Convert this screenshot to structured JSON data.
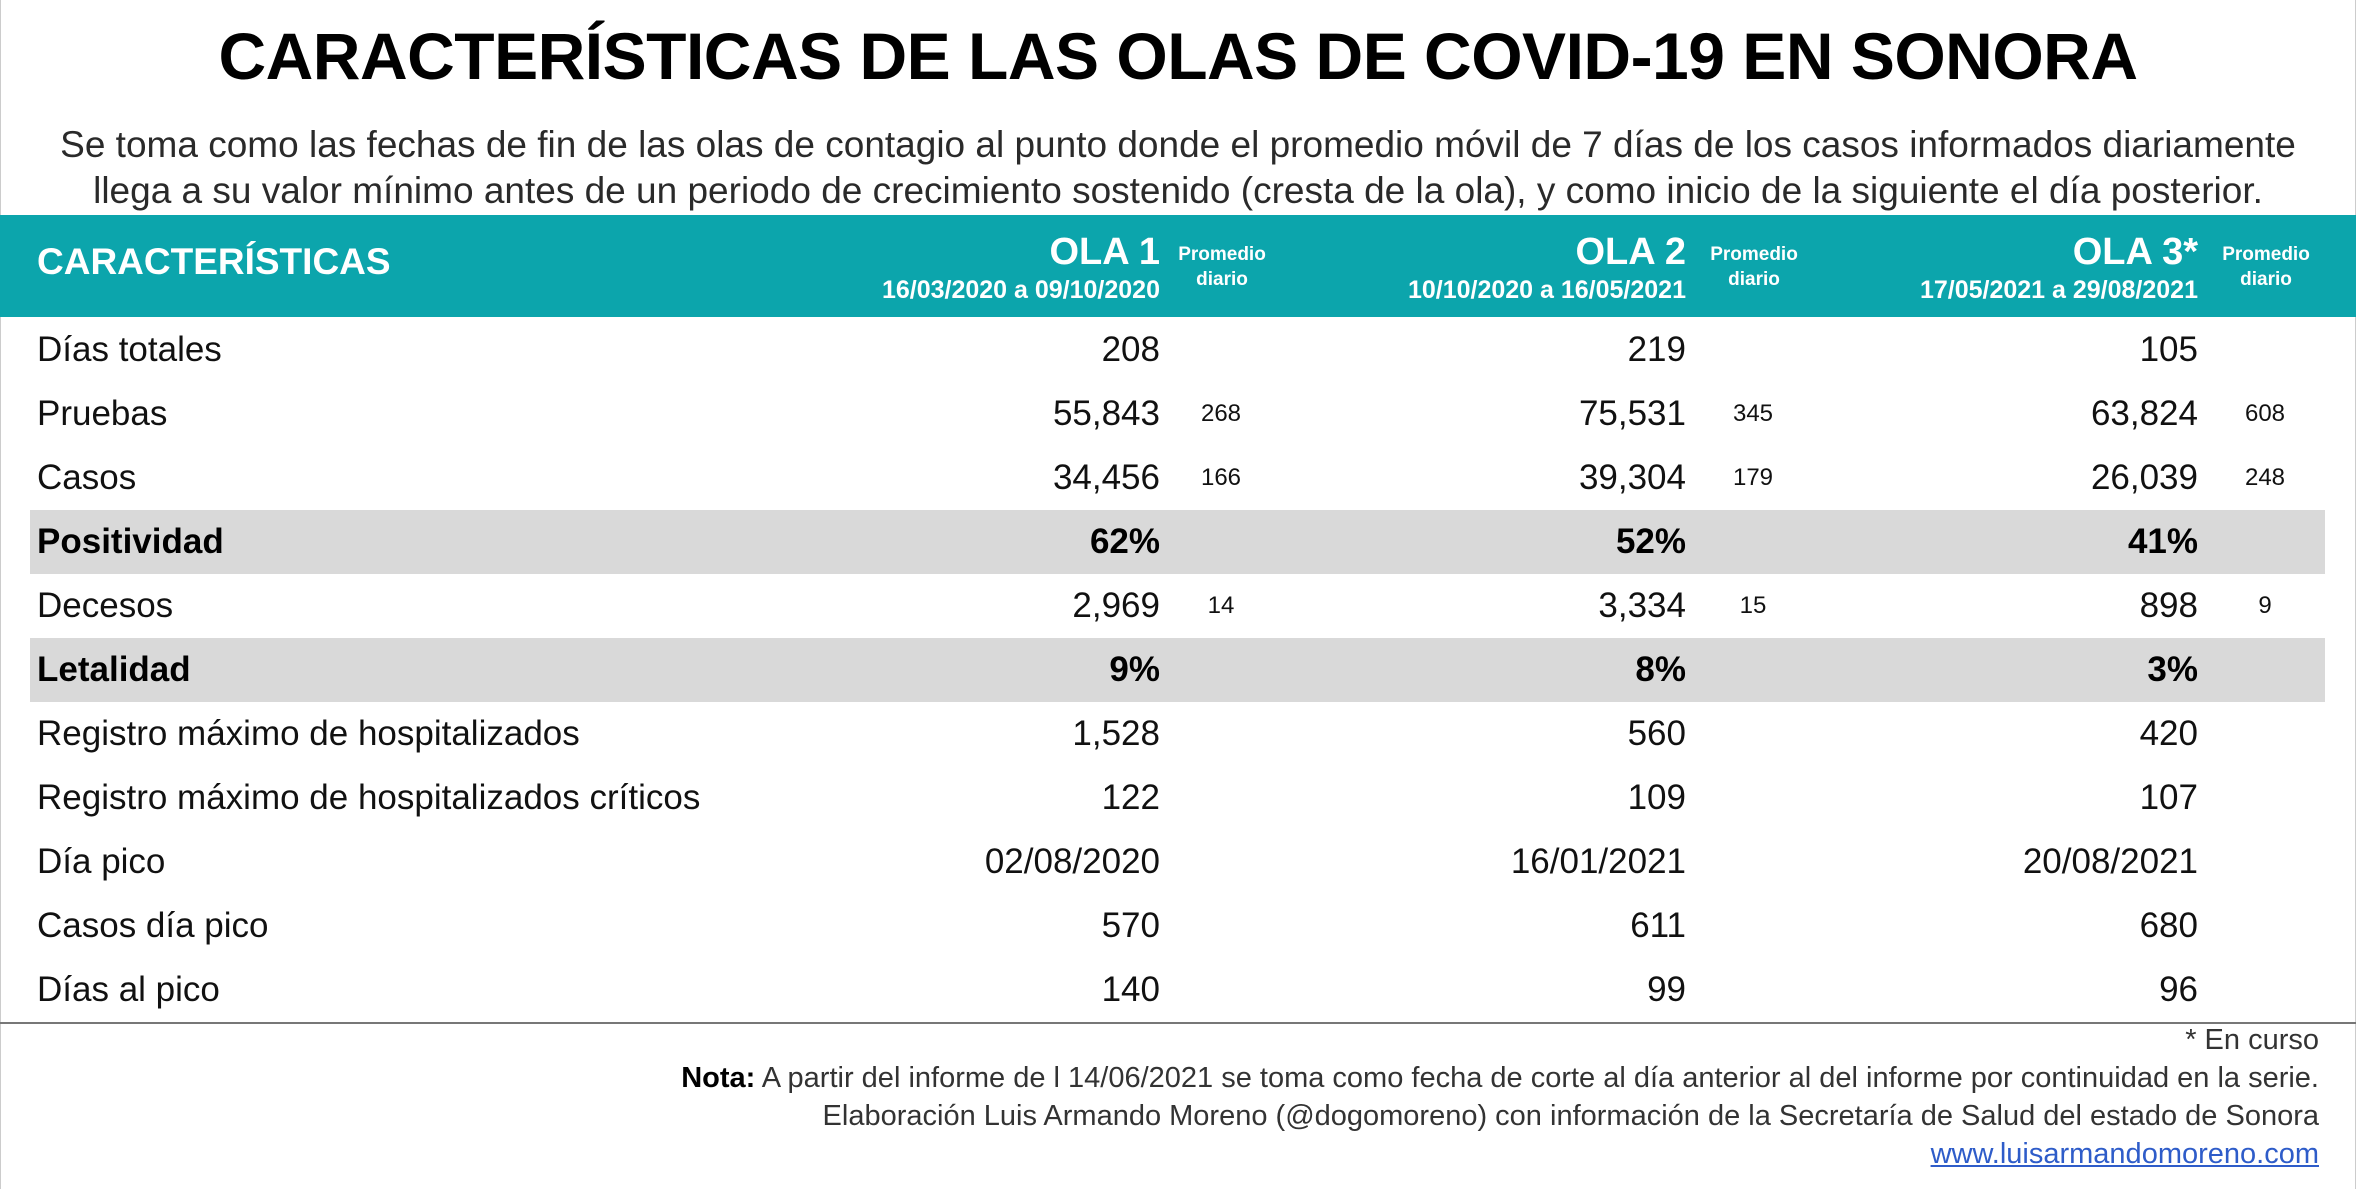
{
  "title": "CARACTERÍSTICAS DE LAS OLAS DE COVID-19 EN SONORA",
  "subtitle_line1": "Se toma como las fechas de fin de las olas de contagio al punto donde el promedio móvil de 7 días de los casos informados diariamente",
  "subtitle_line2": "llega a su valor mínimo antes de un periodo de crecimiento sostenido (cresta de la ola), y como inicio de la siguiente el día posterior.",
  "header": {
    "characteristics": "CARACTERÍSTICAS",
    "waves": [
      {
        "name": "OLA 1",
        "range": "16/03/2020 a 09/10/2020"
      },
      {
        "name": "OLA 2",
        "range": "10/10/2020 a 16/05/2021"
      },
      {
        "name": "OLA 3*",
        "range": "17/05/2021 a 29/08/2021"
      }
    ],
    "avg_line1": "Promedio",
    "avg_line2": "diario"
  },
  "rows": [
    {
      "label": "Días totales",
      "values": [
        "208",
        "219",
        "105"
      ],
      "avgs": [
        "",
        "",
        ""
      ]
    },
    {
      "label": "Pruebas",
      "values": [
        "55,843",
        "75,531",
        "63,824"
      ],
      "avgs": [
        "268",
        "345",
        "608"
      ]
    },
    {
      "label": "Casos",
      "values": [
        "34,456",
        "39,304",
        "26,039"
      ],
      "avgs": [
        "166",
        "179",
        "248"
      ]
    },
    {
      "label": "Positividad",
      "values": [
        "62%",
        "52%",
        "41%"
      ],
      "avgs": [
        "",
        "",
        ""
      ]
    },
    {
      "label": "Decesos",
      "values": [
        "2,969",
        "3,334",
        "898"
      ],
      "avgs": [
        "14",
        "15",
        "9"
      ]
    },
    {
      "label": "Letalidad",
      "values": [
        "9%",
        "8%",
        "3%"
      ],
      "avgs": [
        "",
        "",
        ""
      ]
    },
    {
      "label": "Registro máximo de hospitalizados",
      "values": [
        "1,528",
        "560",
        "420"
      ],
      "avgs": [
        "",
        "",
        ""
      ]
    },
    {
      "label": "Registro máximo de hospitalizados críticos",
      "values": [
        "122",
        "109",
        "107"
      ],
      "avgs": [
        "",
        "",
        ""
      ]
    },
    {
      "label": "Día pico",
      "values": [
        "02/08/2020",
        "16/01/2021",
        "20/08/2021"
      ],
      "avgs": [
        "",
        "",
        ""
      ]
    },
    {
      "label": "Casos día pico",
      "values": [
        "570",
        "611",
        "680"
      ],
      "avgs": [
        "",
        "",
        ""
      ]
    },
    {
      "label": "Días al pico",
      "values": [
        "140",
        "99",
        "96"
      ],
      "avgs": [
        "",
        "",
        ""
      ]
    }
  ],
  "footer": {
    "en_curso": "* En curso",
    "nota_label": "Nota:",
    "nota_text": " A partir del informe de l 14/06/2021 se toma como fecha de corte al día anterior al del informe por continuidad en la serie.",
    "credit": "Elaboración Luis Armando Moreno (@dogomoreno) con información de la Secretaría de Salud del estado de Sonora",
    "link": "www.luisarmandomoreno.com"
  },
  "colors": {
    "header_bg": "#0ca5ac",
    "shaded_row": "#d9d9d9",
    "link": "#2e5cc9"
  }
}
